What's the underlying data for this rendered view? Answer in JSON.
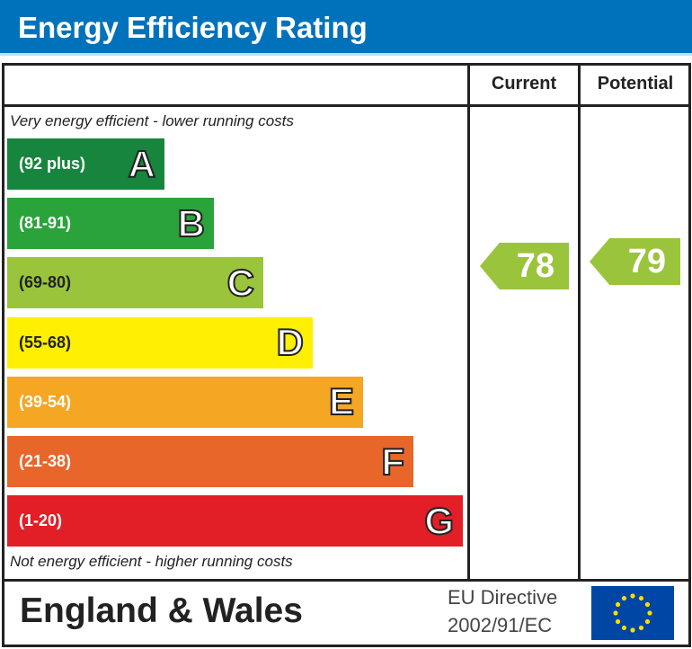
{
  "title": "Energy Efficiency Rating",
  "columns": {
    "current": "Current",
    "potential": "Potential"
  },
  "top_note": "Very energy efficient - lower running costs",
  "bottom_note": "Not energy efficient - higher running costs",
  "footer": {
    "region": "England & Wales",
    "directive_line1": "EU Directive",
    "directive_line2": "2002/91/EC",
    "flag_icon": "eu-flag-icon"
  },
  "chart_data": {
    "type": "bar",
    "categories": [
      "A",
      "B",
      "C",
      "D",
      "E",
      "F",
      "G"
    ],
    "ranges": [
      "(92 plus)",
      "(81-91)",
      "(69-80)",
      "(55-68)",
      "(39-54)",
      "(21-38)",
      "(1-20)"
    ],
    "colors": [
      "#17853d",
      "#2aa33b",
      "#9ac43b",
      "#ffef00",
      "#f5a623",
      "#e8662a",
      "#e21e26"
    ],
    "current": {
      "value": "78",
      "band": "C",
      "color": "#9ac43b"
    },
    "potential": {
      "value": "79",
      "band": "C",
      "color": "#9ac43b"
    }
  }
}
